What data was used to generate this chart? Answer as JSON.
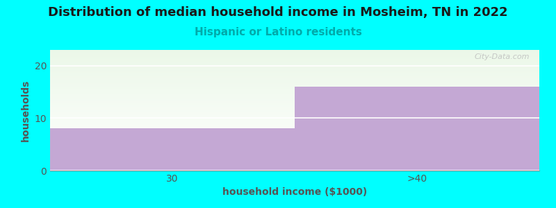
{
  "title": "Distribution of median household income in Mosheim, TN in 2022",
  "subtitle": "Hispanic or Latino residents",
  "xlabel": "household income ($1000)",
  "ylabel": "households",
  "categories": [
    "30",
    ">40"
  ],
  "values": [
    8,
    16
  ],
  "ylim": [
    0,
    23
  ],
  "yticks": [
    0,
    10,
    20
  ],
  "bar_color": "#C4A8D4",
  "bar_color_top": "#E8F5E2",
  "background_color": "#00FFFF",
  "plot_bg_top": "#EBF7E8",
  "plot_bg_bottom": "#FFFFFF",
  "title_color": "#1a1a1a",
  "subtitle_color": "#00AAAA",
  "axis_color": "#555555",
  "watermark": "City-Data.com",
  "title_fontsize": 13,
  "subtitle_fontsize": 11,
  "label_fontsize": 10,
  "tick_fontsize": 10
}
